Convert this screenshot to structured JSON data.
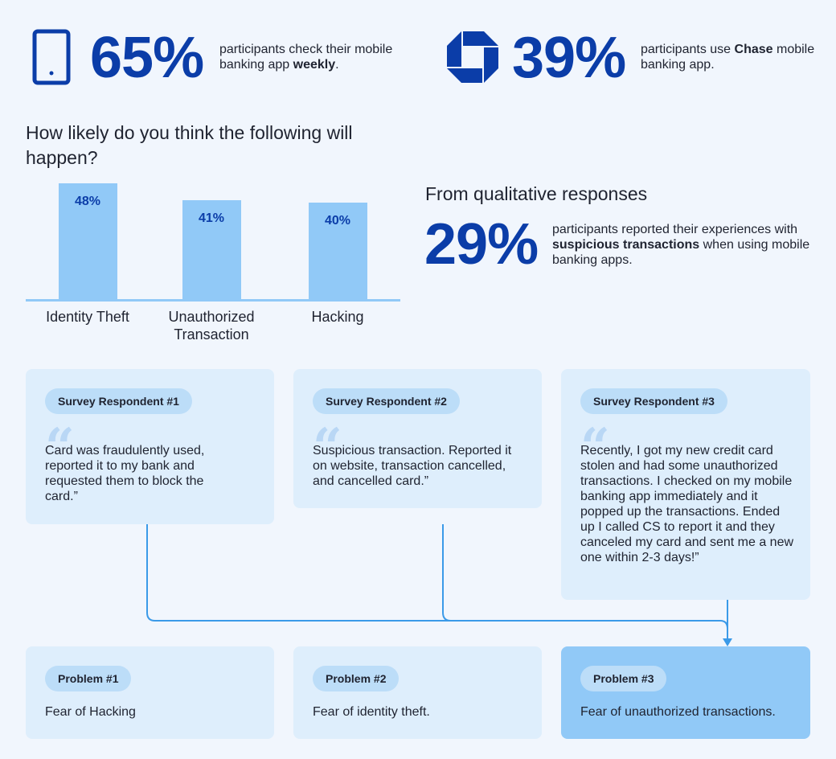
{
  "stats": [
    {
      "value": "65%",
      "text_before": "participants check their mobile banking app ",
      "text_bold": "weekly",
      "text_after": "."
    },
    {
      "value": "39%",
      "text_before": "participants use ",
      "text_bold": "Chase",
      "text_after": " mobile banking app."
    }
  ],
  "icons": {
    "phone": "mobile-phone-icon",
    "chase": "chase-logo-icon",
    "colors": {
      "brand": "#0b3da8",
      "bar": "#91c9f7",
      "line": "#3b9ae8"
    }
  },
  "question": "How likely do you think the following will happen?",
  "chart_data": {
    "type": "bar",
    "categories": [
      "Identity Theft",
      "Unauthorized Transaction",
      "Hacking"
    ],
    "values": [
      48,
      41,
      40
    ],
    "value_labels": [
      "48%",
      "41%",
      "40%"
    ],
    "title": "How likely do you think the following will happen?",
    "xlabel": "",
    "ylabel": "",
    "ylim": [
      0,
      50
    ],
    "grid": false
  },
  "qualitative": {
    "heading": "From qualitative responses",
    "value": "29%",
    "text_before": "participants reported their experiences with ",
    "text_bold": "suspicious transactions",
    "text_after": " when using mobile banking apps."
  },
  "respondents": [
    {
      "label": "Survey Respondent #1",
      "quote": "Card was fraudulently used, reported it to my bank and requested them to block the card.”"
    },
    {
      "label": "Survey Respondent #2",
      "quote": "Suspicious transaction. Reported it on website, transaction cancelled, and cancelled card.”"
    },
    {
      "label": "Survey Respondent #3",
      "quote": "Recently, I got my new credit card stolen and had some unauthorized transactions. I checked on my mobile banking app immediately and it popped up the transactions. Ended up I called CS to report it and they canceled my card and sent me a new one within 2-3 days!”"
    }
  ],
  "problems": [
    {
      "label": "Problem #1",
      "text": "Fear of Hacking"
    },
    {
      "label": "Problem #2",
      "text": "Fear of identity theft."
    },
    {
      "label": "Problem #3",
      "text": "Fear of unauthorized transactions."
    }
  ]
}
